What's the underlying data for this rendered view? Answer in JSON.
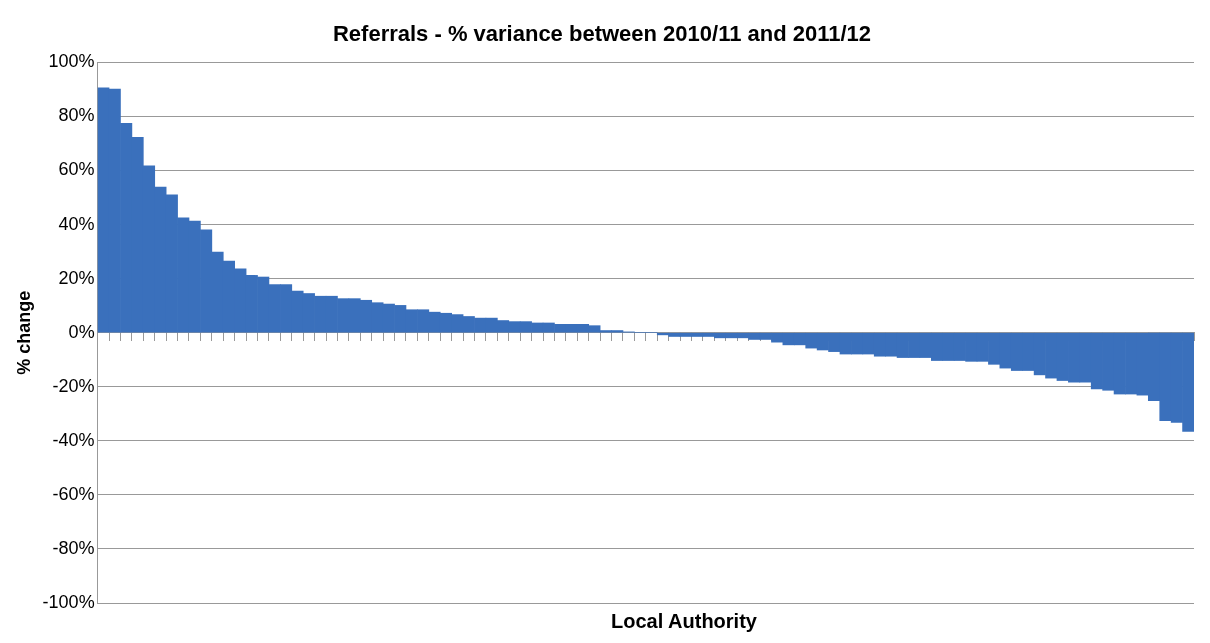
{
  "chart_data": {
    "type": "bar",
    "title": "Referrals - % variance between 2010/11 and 2011/12",
    "xlabel": "Local Authority",
    "ylabel": "% change",
    "categories": [
      null,
      null,
      null,
      null,
      null,
      null,
      null,
      null,
      null,
      null,
      null,
      null,
      null,
      null,
      null,
      null,
      null,
      null,
      null,
      null,
      null,
      null,
      null,
      null,
      null,
      null,
      null,
      null,
      null,
      null,
      null,
      null,
      null,
      null,
      null,
      null,
      null,
      null,
      null,
      null,
      null,
      null,
      null,
      null,
      null,
      null,
      null,
      null,
      null,
      null,
      null,
      null,
      null,
      null,
      null,
      null,
      null,
      null,
      null,
      null,
      null,
      null,
      null,
      null,
      null,
      null,
      null,
      null,
      null,
      null,
      null,
      null,
      null,
      null,
      null,
      null,
      null,
      null,
      null,
      null,
      null,
      null,
      null,
      null,
      null,
      null,
      null,
      null,
      null,
      null,
      null,
      null,
      null,
      null,
      null,
      null
    ],
    "values": [
      90.6,
      90.1,
      77.5,
      72.3,
      61.7,
      53.9,
      51.0,
      42.5,
      41.3,
      38.1,
      29.8,
      26.5,
      23.6,
      21.2,
      20.6,
      17.8,
      17.8,
      15.4,
      14.5,
      13.5,
      13.5,
      12.6,
      12.6,
      12.0,
      11.1,
      10.6,
      10.1,
      8.5,
      8.5,
      7.6,
      7.2,
      6.7,
      6.0,
      5.4,
      5.4,
      4.5,
      4.1,
      4.1,
      3.6,
      3.6,
      3.1,
      3.1,
      3.1,
      2.6,
      0.8,
      0.8,
      0.3,
      0,
      0,
      -0.8,
      -1.4,
      -1.4,
      -1.4,
      -1.4,
      -1.9,
      -1.9,
      -1.9,
      -2.5,
      -2.5,
      -3.5,
      -4.5,
      -4.5,
      -5.7,
      -6.4,
      -7.0,
      -7.9,
      -7.9,
      -7.9,
      -8.7,
      -8.7,
      -9.2,
      -9.2,
      -9.2,
      -10.3,
      -10.3,
      -10.3,
      -10.6,
      -10.6,
      -11.7,
      -13.1,
      -14.0,
      -14.0,
      -15.6,
      -16.8,
      -17.7,
      -18.3,
      -18.3,
      -20.8,
      -21.3,
      -22.7,
      -22.7,
      -23.1,
      -25.1,
      -32.5,
      -33.2,
      -36.5
    ],
    "color": "#3a70bc",
    "ylim": [
      -100,
      100
    ],
    "yticks": [
      {
        "value": -100,
        "label": "-100%"
      },
      {
        "value": -80,
        "label": "-80%"
      },
      {
        "value": -60,
        "label": "-60%"
      },
      {
        "value": -40,
        "label": "-40%"
      },
      {
        "value": -20,
        "label": "-20%"
      },
      {
        "value": 0,
        "label": "0%"
      },
      {
        "value": 20,
        "label": "20%"
      },
      {
        "value": 40,
        "label": "40%"
      },
      {
        "value": 60,
        "label": "60%"
      },
      {
        "value": 80,
        "label": "80%"
      },
      {
        "value": 100,
        "label": "100%"
      }
    ],
    "grid": "y",
    "legend": false
  }
}
